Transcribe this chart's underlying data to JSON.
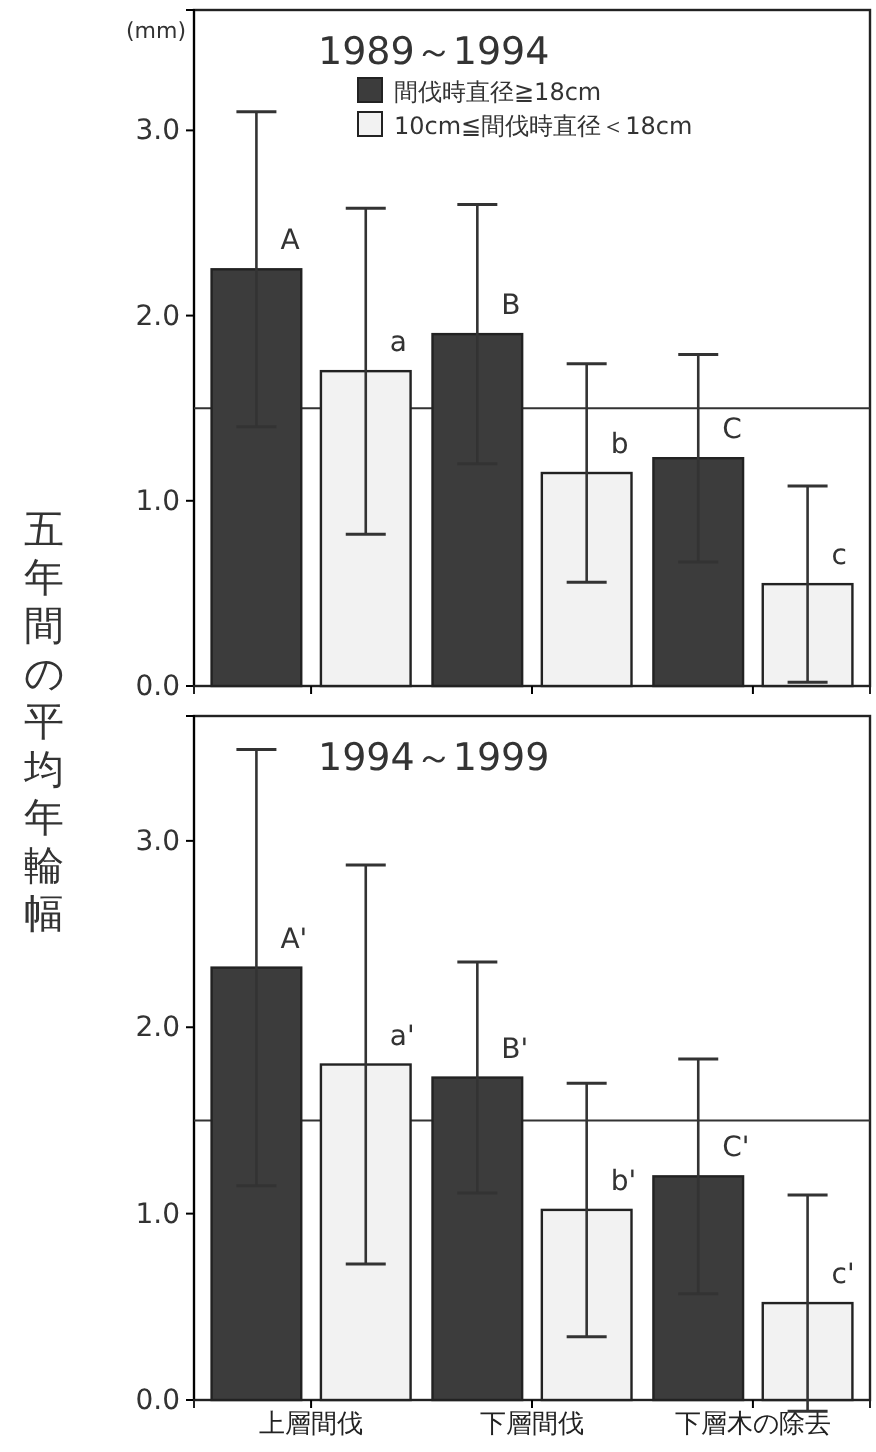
{
  "chart_data": [
    {
      "type": "bar",
      "title": "1989～1994",
      "ylabel": "五年間の平均年輪幅",
      "annotations": [
        "(mm)"
      ],
      "categories": [
        null,
        null,
        null
      ],
      "series": [
        {
          "name": "間伐時直径≧18cm",
          "color": "#3c3c3c",
          "values": [
            2.25,
            1.9,
            1.23
          ],
          "errors": [
            0.85,
            0.7,
            0.56
          ],
          "value_labels": [
            "A",
            "B",
            "C"
          ]
        },
        {
          "name": "10cm≦間伐時直径＜18cm",
          "color": "#f2f2f2",
          "values": [
            1.7,
            1.15,
            0.55
          ],
          "errors": [
            0.88,
            0.59,
            0.53
          ],
          "value_labels": [
            "a",
            "b",
            "c"
          ]
        }
      ],
      "ylim": [
        0,
        3.65
      ],
      "yticks": [
        {
          "value": 0,
          "label": "0.0"
        },
        {
          "value": 1,
          "label": "1.0"
        },
        {
          "value": 2,
          "label": "2.0"
        },
        {
          "value": 3,
          "label": "3.0"
        }
      ],
      "ref_lines": [
        {
          "axis": "y",
          "value": 1.5,
          "color": "#333333"
        }
      ],
      "legend": "top right",
      "tick_labels": "y"
    },
    {
      "type": "bar",
      "title": "1994～1999",
      "categories": [
        "上層間伐",
        "下層間伐",
        "下層木の除去"
      ],
      "series": [
        {
          "color": "#3c3c3c",
          "values": [
            2.32,
            1.73,
            1.2
          ],
          "errors": [
            1.17,
            0.62,
            0.63
          ],
          "value_labels": [
            "A'",
            "B'",
            "C'"
          ]
        },
        {
          "color": "#f2f2f2",
          "values": [
            1.8,
            1.02,
            0.52
          ],
          "errors": [
            1.07,
            0.68,
            0.58
          ],
          "value_labels": [
            "a'",
            "b'",
            "c'"
          ]
        }
      ],
      "ylim": [
        0,
        3.67
      ],
      "yticks": [
        {
          "value": 0,
          "label": "0.0"
        },
        {
          "value": 1,
          "label": "1.0"
        },
        {
          "value": 2,
          "label": "2.0"
        },
        {
          "value": 3,
          "label": "3.0"
        }
      ],
      "ref_lines": [
        {
          "axis": "y",
          "value": 1.5,
          "color": "#333333"
        }
      ]
    }
  ]
}
